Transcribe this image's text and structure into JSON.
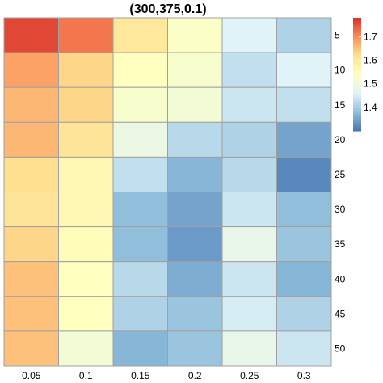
{
  "chart_data": {
    "type": "heatmap",
    "title": "(300,375,0.1)",
    "x_categories": [
      "0.05",
      "0.1",
      "0.15",
      "0.2",
      "0.25",
      "0.3"
    ],
    "y_categories": [
      "5",
      "10",
      "15",
      "20",
      "25",
      "30",
      "35",
      "40",
      "45",
      "50"
    ],
    "values": [
      [
        1.76,
        1.72,
        1.6,
        1.53,
        1.46,
        1.41
      ],
      [
        1.68,
        1.63,
        1.54,
        1.52,
        1.43,
        1.46
      ],
      [
        1.66,
        1.63,
        1.52,
        1.51,
        1.44,
        1.43
      ],
      [
        1.66,
        1.61,
        1.49,
        1.42,
        1.41,
        1.35
      ],
      [
        1.62,
        1.56,
        1.43,
        1.37,
        1.42,
        1.32
      ],
      [
        1.61,
        1.56,
        1.38,
        1.35,
        1.44,
        1.38
      ],
      [
        1.63,
        1.55,
        1.38,
        1.34,
        1.48,
        1.39
      ],
      [
        1.65,
        1.54,
        1.42,
        1.36,
        1.44,
        1.37
      ],
      [
        1.65,
        1.54,
        1.41,
        1.39,
        1.45,
        1.41
      ],
      [
        1.65,
        1.51,
        1.37,
        1.39,
        1.48,
        1.44
      ]
    ],
    "color_range": [
      1.3,
      1.78
    ],
    "colorbar_ticks": [
      1.4,
      1.5,
      1.6,
      1.7
    ],
    "colorbar_tick_labels": [
      "1.4",
      "1.5",
      "1.6",
      "1.7"
    ],
    "palette": [
      "#4575b4",
      "#91bfdb",
      "#e0f3f8",
      "#ffffbf",
      "#fee090",
      "#fc8d59",
      "#d73027"
    ],
    "legend": "right"
  }
}
